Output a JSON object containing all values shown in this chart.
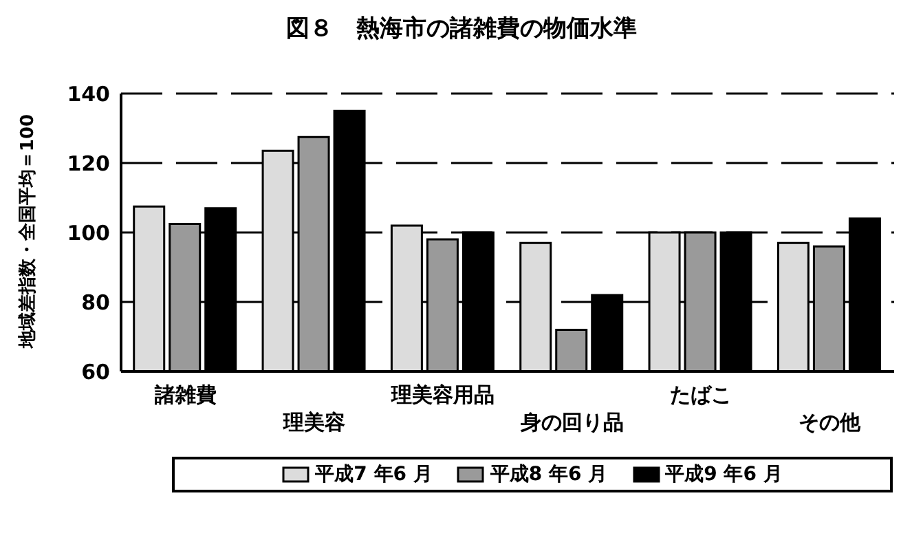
{
  "chart_data": {
    "type": "bar",
    "title": "図８　熱海市の諸雑費の物価水準",
    "ylabel": "地域差指数・全国平均＝100",
    "categories": [
      "諸雑費",
      "理美容",
      "理美容用品",
      "身の回り品",
      "たばこ",
      "その他"
    ],
    "series": [
      {
        "name": "平成7 年6 月",
        "color": "#dcdcdc",
        "values": [
          107.5,
          123.5,
          102,
          97,
          100,
          97
        ]
      },
      {
        "name": "平成8 年6 月",
        "color": "#9a9a9a",
        "values": [
          102.5,
          127.5,
          98,
          72,
          100,
          96
        ]
      },
      {
        "name": "平成9 年6 月",
        "color": "#000000",
        "values": [
          107,
          135,
          100,
          82,
          100,
          104
        ]
      }
    ],
    "ylim": [
      60,
      140
    ],
    "yticks": [
      60,
      80,
      100,
      120,
      140
    ],
    "grid": "y",
    "legend": "bottom"
  }
}
